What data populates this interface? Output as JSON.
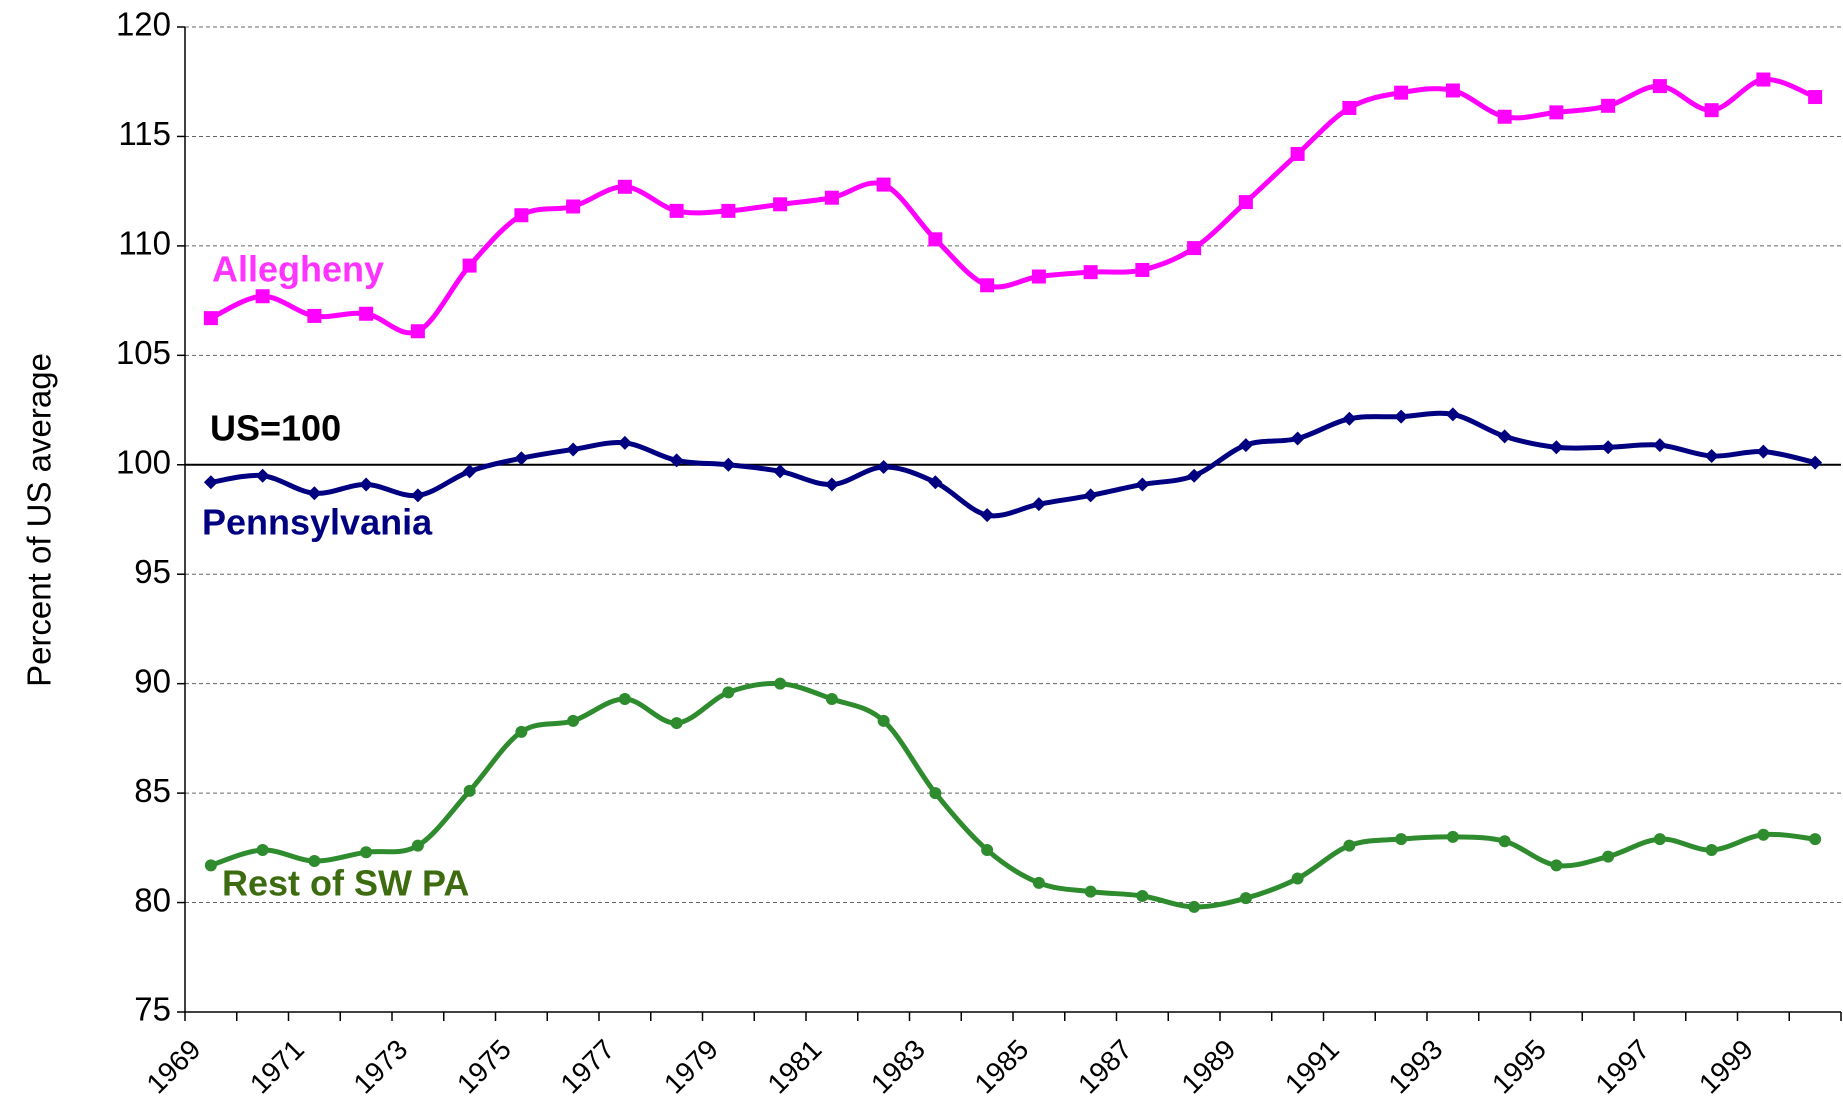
{
  "chart_data": {
    "type": "line",
    "y_label": "Percent of US average",
    "categories": [
      "1969",
      null,
      "1971",
      null,
      "1973",
      null,
      "1975",
      null,
      "1977",
      null,
      "1979",
      null,
      "1981",
      null,
      "1983",
      null,
      "1985",
      null,
      "1987",
      null,
      "1989",
      null,
      "1991",
      null,
      "1993",
      null,
      "1995",
      null,
      "1997",
      null,
      "1999",
      null
    ],
    "series": [
      {
        "name": "Allegheny",
        "color": "#ff00ff",
        "label_color": "#ff33ff",
        "marker": "square",
        "values": [
          106.7,
          107.7,
          106.8,
          106.9,
          106.1,
          109.1,
          111.4,
          111.8,
          112.7,
          111.6,
          111.6,
          111.9,
          112.2,
          112.8,
          110.3,
          108.2,
          108.6,
          108.8,
          108.9,
          109.9,
          112.0,
          114.2,
          116.3,
          117.0,
          117.1,
          115.9,
          116.1,
          116.4,
          117.3,
          116.2,
          117.6,
          116.8
        ]
      },
      {
        "name": "Pennsylvania",
        "color": "#000080",
        "label_color": "#000080",
        "marker": "diamond",
        "values": [
          99.2,
          99.5,
          98.7,
          99.1,
          98.6,
          99.7,
          100.3,
          100.7,
          101.0,
          100.2,
          100.0,
          99.7,
          99.1,
          99.9,
          99.2,
          97.7,
          98.2,
          98.6,
          99.1,
          99.5,
          100.9,
          101.2,
          102.1,
          102.2,
          102.3,
          101.3,
          100.8,
          100.8,
          100.9,
          100.4,
          100.6,
          100.1
        ]
      },
      {
        "name": "Rest of SW PA",
        "color": "#2e8b2e",
        "label_color": "#3d6b0f",
        "marker": "circle",
        "values": [
          81.7,
          82.4,
          81.9,
          82.3,
          82.6,
          85.1,
          87.8,
          88.3,
          89.3,
          88.2,
          89.6,
          90.0,
          89.3,
          88.3,
          85.0,
          82.4,
          80.9,
          80.5,
          80.3,
          79.8,
          80.2,
          81.1,
          82.6,
          82.9,
          83.0,
          82.8,
          81.7,
          82.1,
          82.9,
          82.4,
          83.1,
          82.9
        ]
      }
    ],
    "reference_line": {
      "value": 100,
      "label": "US=100"
    },
    "ylim": [
      75,
      120
    ],
    "yticks": [
      75,
      80,
      85,
      90,
      95,
      100,
      105,
      110,
      115,
      120
    ],
    "grid": true,
    "smooth": true
  }
}
